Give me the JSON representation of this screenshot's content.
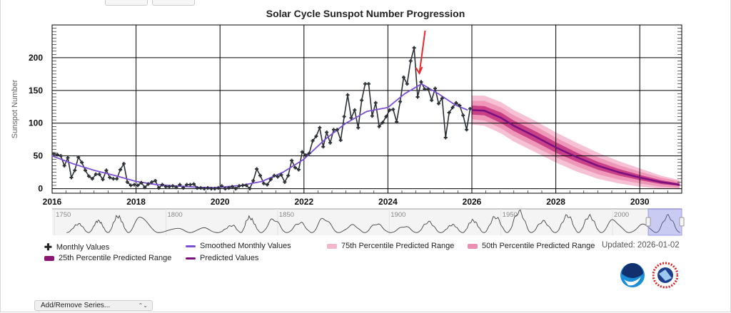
{
  "top_buttons": [
    "",
    ""
  ],
  "chart_data": {
    "type": "line",
    "title": "Solar Cycle Sunspot Number Progression",
    "ylabel": "Sunspot Number",
    "xlabel": "",
    "xlim": [
      2016,
      2031
    ],
    "ylim": [
      -7,
      250
    ],
    "x_ticks": [
      "2016",
      "2018",
      "2020",
      "2022",
      "2024",
      "2026",
      "2028",
      "2030"
    ],
    "y_ticks": [
      "0",
      "50",
      "100",
      "150",
      "200"
    ],
    "grid": true,
    "monthly": {
      "name": "Monthly Values",
      "start": "2016-01",
      "color": "#2b3036",
      "values": [
        53,
        52,
        50,
        35,
        47,
        17,
        28,
        48,
        40,
        28,
        19,
        15,
        22,
        22,
        14,
        28,
        17,
        15,
        15,
        29,
        38,
        10,
        5,
        6,
        5,
        9,
        2,
        7,
        10,
        12,
        1,
        6,
        3,
        3,
        4,
        2,
        6,
        1,
        6,
        6,
        7,
        1,
        1,
        0,
        1,
        0,
        0,
        1,
        4,
        0,
        1,
        3,
        0,
        4,
        5,
        5,
        0,
        12,
        30,
        20,
        8,
        6,
        14,
        20,
        18,
        21,
        10,
        20,
        43,
        32,
        29,
        56,
        51,
        54,
        73,
        80,
        93,
        64,
        86,
        70,
        90,
        90,
        74,
        110,
        143,
        108,
        120,
        93,
        135,
        160,
        160,
        111,
        131,
        95,
        101,
        110,
        120,
        121,
        102,
        133,
        170,
        160,
        195,
        215,
        140,
        163,
        152,
        152,
        135,
        153,
        130,
        138,
        78,
        116,
        124,
        131,
        127,
        112,
        90,
        122
      ]
    },
    "smoothed": {
      "name": "Smoothed Monthly Values",
      "color": "#7b4fd6",
      "points": [
        [
          2016.0,
          50
        ],
        [
          2016.5,
          38
        ],
        [
          2017.0,
          28
        ],
        [
          2017.5,
          20
        ],
        [
          2018.0,
          11
        ],
        [
          2018.5,
          6
        ],
        [
          2019.0,
          4
        ],
        [
          2019.5,
          2
        ],
        [
          2019.9,
          1.5
        ],
        [
          2020.5,
          5
        ],
        [
          2021.0,
          11
        ],
        [
          2021.5,
          25
        ],
        [
          2022.0,
          45
        ],
        [
          2022.5,
          75
        ],
        [
          2023.0,
          100
        ],
        [
          2023.5,
          118
        ],
        [
          2024.0,
          124
        ],
        [
          2024.4,
          145
        ],
        [
          2024.8,
          160
        ],
        [
          2025.2,
          145
        ],
        [
          2025.6,
          128
        ],
        [
          2025.9,
          120
        ]
      ]
    },
    "predicted": {
      "name": "Predicted Values",
      "color": "#7a1080",
      "points": [
        [
          2026.0,
          120
        ],
        [
          2026.3,
          119
        ],
        [
          2026.7,
          108
        ],
        [
          2027.0,
          96
        ],
        [
          2027.5,
          80
        ],
        [
          2028.0,
          63
        ],
        [
          2028.5,
          48
        ],
        [
          2029.0,
          35
        ],
        [
          2029.5,
          25
        ],
        [
          2030.0,
          17
        ],
        [
          2030.5,
          10
        ],
        [
          2030.95,
          6
        ]
      ]
    },
    "bands": [
      {
        "name": "75th Percentile Predicted Range",
        "color": "#f4b6cc",
        "spread": [
          22,
          23,
          24,
          24,
          24,
          23,
          22,
          20,
          17,
          14,
          10,
          7
        ]
      },
      {
        "name": "50th Percentile Predicted Range",
        "color": "#ec8fb3",
        "spread": [
          14,
          15,
          16,
          16,
          16,
          15,
          14,
          13,
          11,
          9,
          7,
          5
        ]
      },
      {
        "name": "25th Percentile Predicted Range",
        "color": "#c2307e",
        "spread": [
          7,
          7,
          8,
          8,
          8,
          8,
          7,
          6,
          5,
          4,
          3,
          2
        ]
      }
    ],
    "annotation": {
      "type": "arrow",
      "color": "#e8292a",
      "points_to": [
        2024.75,
        163
      ]
    },
    "navigator": {
      "xlim": [
        1749,
        2031
      ],
      "ticks": [
        "1750",
        "1800",
        "1850",
        "1900",
        "1950",
        "2000"
      ],
      "selected_range": [
        2016,
        2031
      ],
      "cycle_maxima": [
        [
          1761,
          86
        ],
        [
          1769.7,
          116
        ],
        [
          1778.4,
          158
        ],
        [
          1788.1,
          141
        ],
        [
          1805.2,
          49
        ],
        [
          1816.4,
          49
        ],
        [
          1829.9,
          72
        ],
        [
          1837.2,
          147
        ],
        [
          1848.1,
          131
        ],
        [
          1860.1,
          98
        ],
        [
          1870.6,
          140
        ],
        [
          1883.9,
          75
        ],
        [
          1894.1,
          88
        ],
        [
          1907,
          64
        ],
        [
          1917.6,
          105
        ],
        [
          1928.4,
          78
        ],
        [
          1937.4,
          119
        ],
        [
          1947.5,
          152
        ],
        [
          1958.2,
          201
        ],
        [
          1968.9,
          111
        ],
        [
          1979.9,
          165
        ],
        [
          1989.6,
          159
        ],
        [
          2000.3,
          121
        ],
        [
          2014.3,
          82
        ],
        [
          2024.8,
          160
        ]
      ]
    }
  },
  "legend": {
    "monthly": "Monthly Values",
    "smoothed": "Smoothed Monthly Values",
    "p75": "75th Percentile Predicted Range",
    "p50": "50th Percentile Predicted Range",
    "p25": "25th Percentile Predicted Range",
    "predicted": "Predicted Values"
  },
  "updated": "Updated: 2026-01-02",
  "logos": [
    "NOAA",
    "NATIONAL WEATHER SERVICE"
  ],
  "series_select": {
    "label": "Add/Remove Series...",
    "icon": "updown-chevron-icon"
  }
}
